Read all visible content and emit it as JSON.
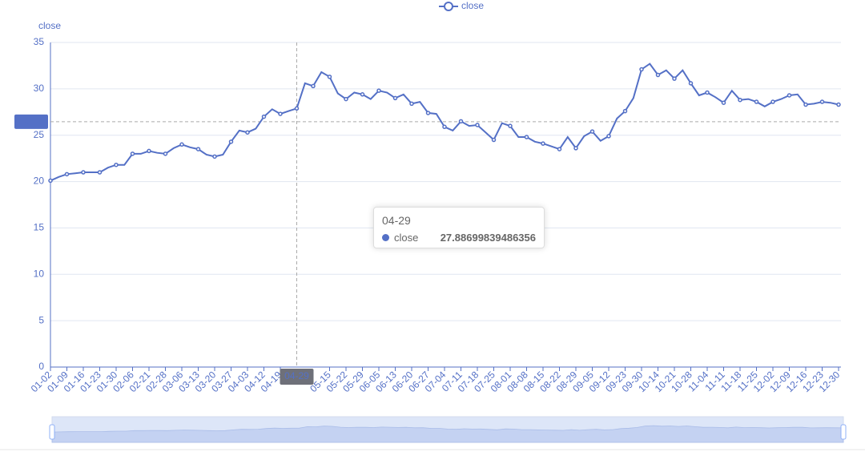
{
  "chart_data": {
    "type": "line",
    "y_axis_label": "close",
    "categories": [
      "01-02",
      null,
      "01-09",
      null,
      "01-16",
      null,
      "01-23",
      null,
      "01-30",
      null,
      "02-06",
      null,
      "02-21",
      null,
      "02-28",
      null,
      "03-06",
      null,
      "03-13",
      null,
      "03-20",
      null,
      "03-27",
      null,
      "04-03",
      null,
      "04-12",
      null,
      "04-19",
      null,
      "04-29",
      null,
      null,
      null,
      "05-15",
      null,
      "05-22",
      null,
      "05-29",
      null,
      "06-05",
      null,
      "06-13",
      null,
      "06-20",
      null,
      "06-27",
      null,
      "07-04",
      null,
      "07-11",
      null,
      "07-18",
      null,
      "07-25",
      null,
      "08-01",
      null,
      "08-08",
      null,
      "08-15",
      null,
      "08-22",
      null,
      "08-29",
      null,
      "09-05",
      null,
      "09-12",
      null,
      "09-23",
      null,
      "09-30",
      null,
      "10-14",
      null,
      "10-21",
      null,
      "10-28",
      null,
      "11-04",
      null,
      "11-11",
      null,
      "11-18",
      null,
      "11-25",
      null,
      "12-02",
      null,
      "12-09",
      null,
      "12-16",
      null,
      "12-23",
      null,
      "12-30"
    ],
    "series": [
      {
        "name": "close",
        "color": "#5470c6",
        "values": [
          20.1,
          20.5,
          20.8,
          20.9,
          21.0,
          21.0,
          21.0,
          21.5,
          21.8,
          21.8,
          23.0,
          23.0,
          23.3,
          23.1,
          23.0,
          23.6,
          24.0,
          23.7,
          23.5,
          22.9,
          22.7,
          22.9,
          24.3,
          25.5,
          25.3,
          25.7,
          27.0,
          27.8,
          27.3,
          27.6,
          27.88699839486356,
          30.6,
          30.3,
          31.8,
          31.3,
          29.5,
          28.9,
          29.6,
          29.4,
          28.9,
          29.8,
          29.6,
          29.0,
          29.4,
          28.4,
          28.6,
          27.4,
          27.3,
          25.9,
          25.5,
          26.5,
          26.0,
          26.1,
          25.3,
          24.5,
          26.3,
          26.0,
          24.8,
          24.8,
          24.3,
          24.1,
          23.8,
          23.5,
          24.8,
          23.6,
          24.9,
          25.4,
          24.4,
          24.9,
          26.8,
          27.6,
          29.0,
          32.1,
          32.7,
          31.5,
          32.0,
          31.1,
          32.0,
          30.6,
          29.3,
          29.6,
          29.1,
          28.5,
          29.8,
          28.8,
          28.9,
          28.6,
          28.1,
          28.6,
          28.9,
          29.3,
          29.4,
          28.3,
          28.4,
          28.6,
          28.5,
          28.3
        ]
      }
    ],
    "ylim": [
      0,
      35
    ],
    "yticks": [
      0,
      5,
      10,
      15,
      20,
      25,
      30,
      35
    ],
    "grid": true,
    "axis_pointer_value": 26.46
  }
}
